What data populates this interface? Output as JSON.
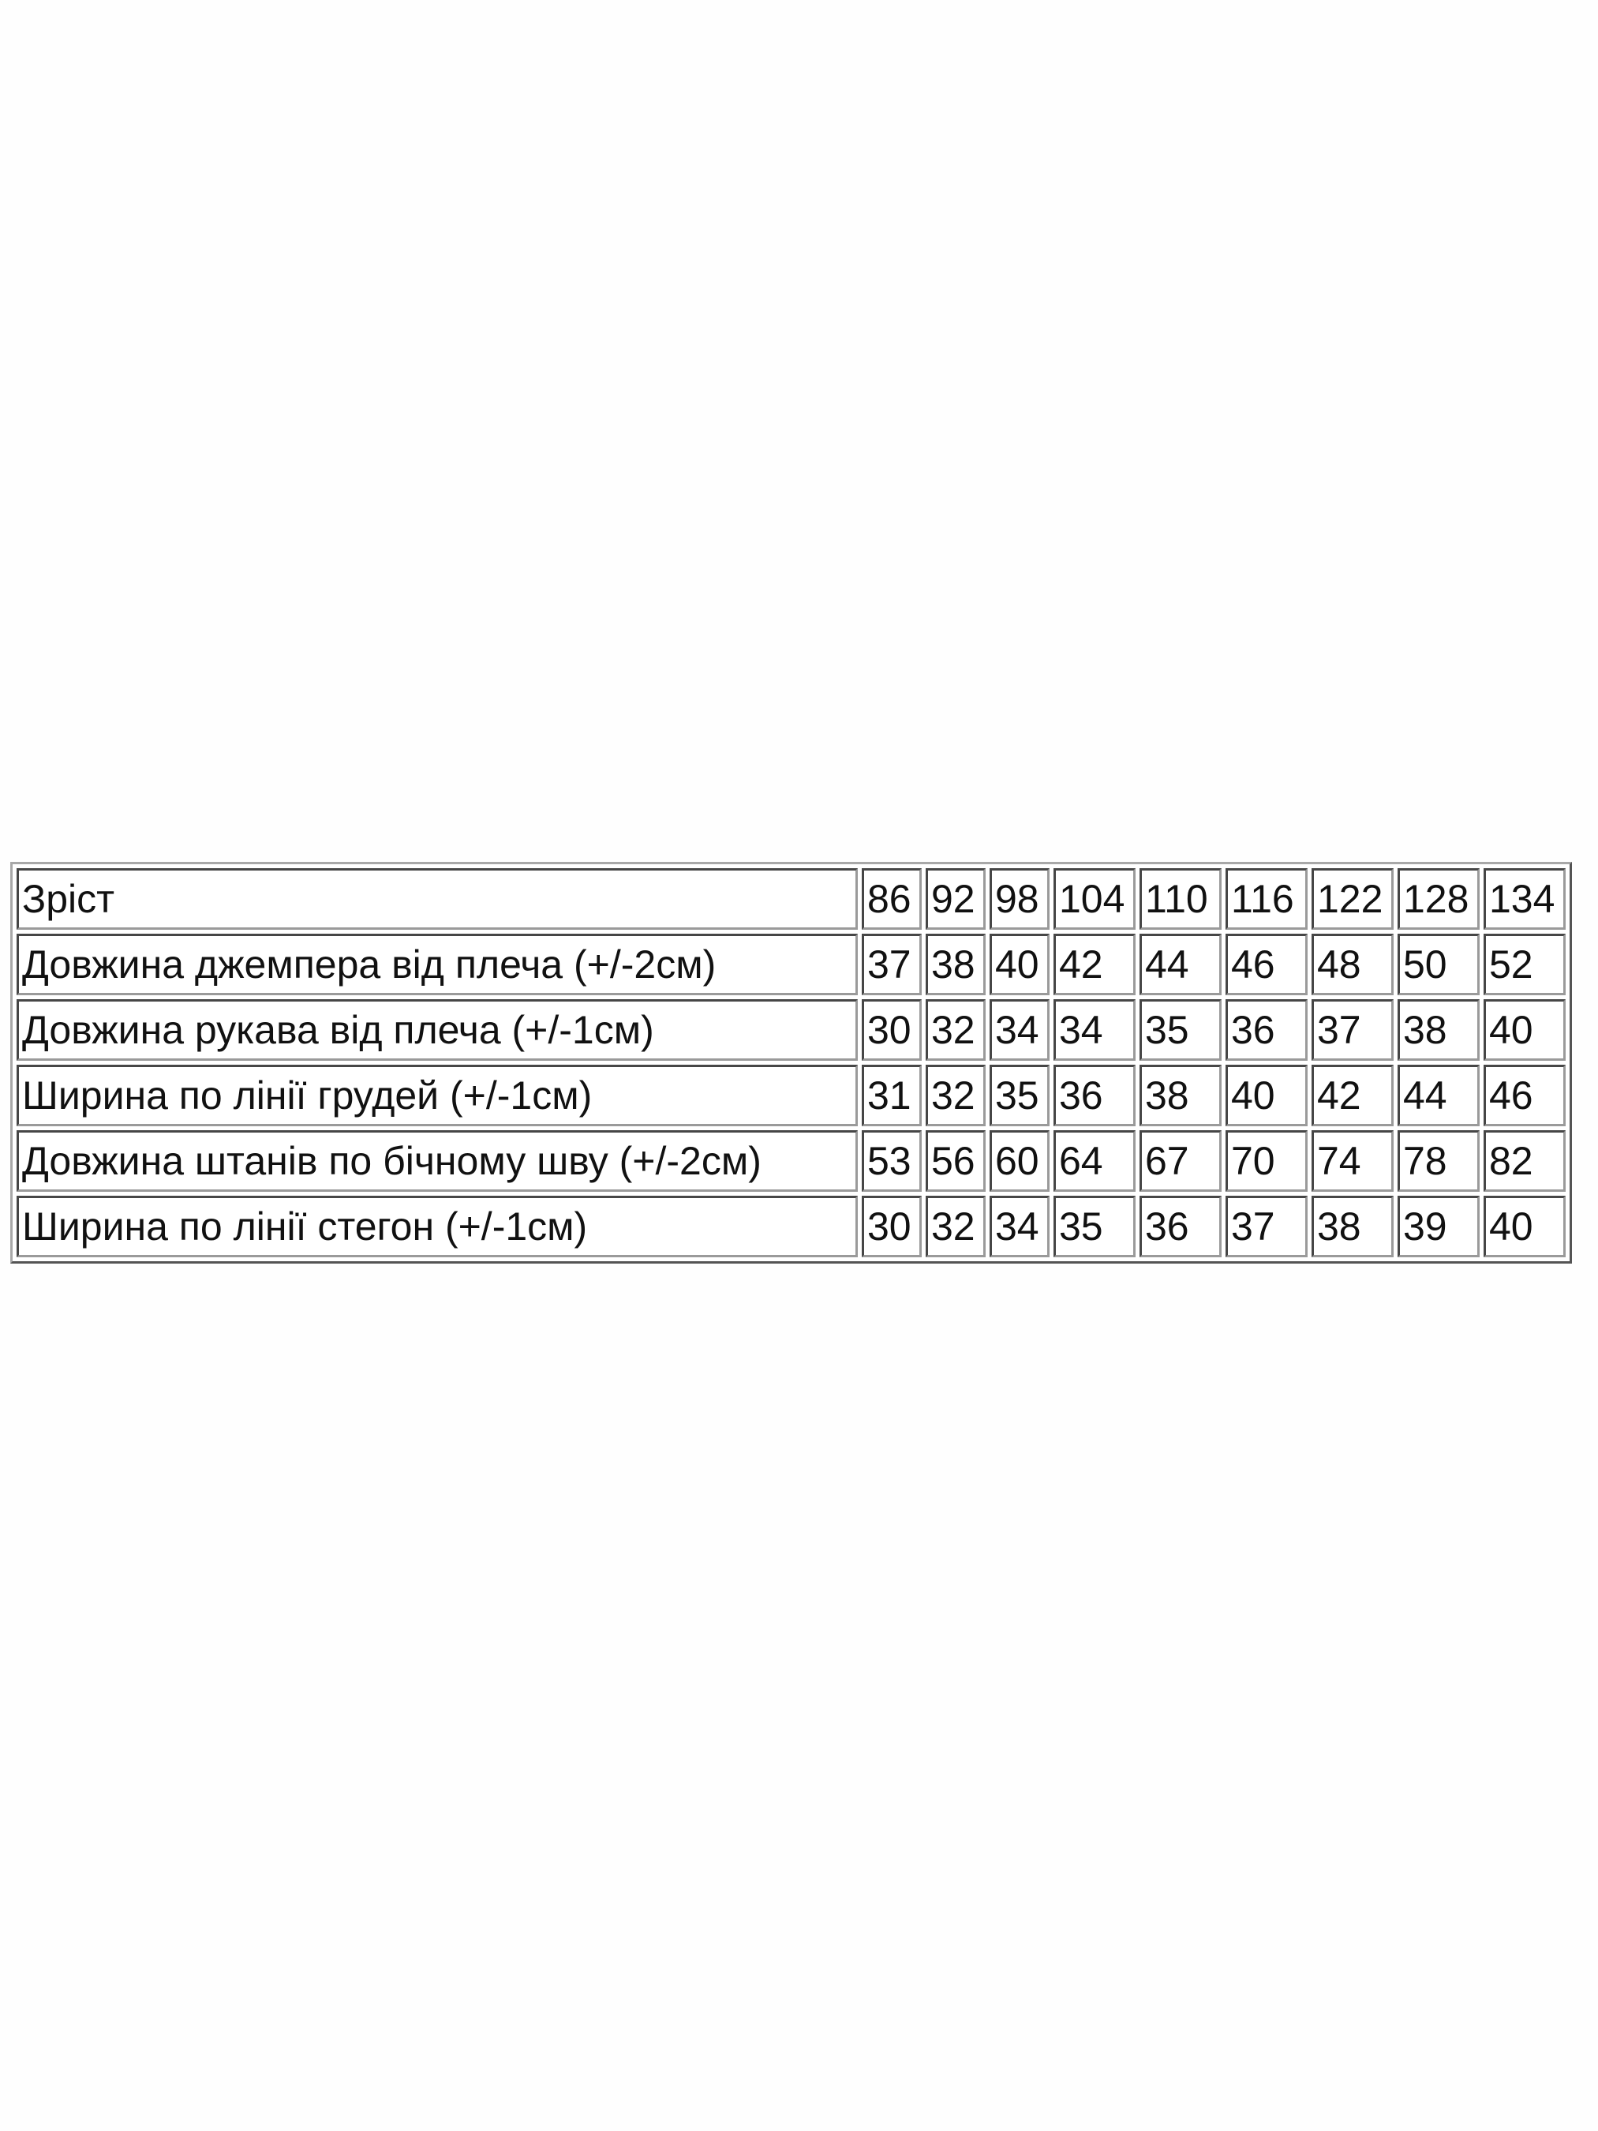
{
  "table": {
    "rows": [
      {
        "label": "Зріст",
        "values": [
          "86",
          "92",
          "98",
          "104",
          "110",
          "116",
          "122",
          "128",
          "134"
        ]
      },
      {
        "label": "Довжина джемпера від плеча (+/-2см)",
        "values": [
          "37",
          "38",
          "40",
          "42",
          "44",
          "46",
          "48",
          "50",
          "52"
        ]
      },
      {
        "label": "Довжина рукава від плеча (+/-1см)",
        "values": [
          "30",
          "32",
          "34",
          "34",
          "35",
          "36",
          "37",
          "38",
          "40"
        ]
      },
      {
        "label": "Ширина по лінії грудей (+/-1см)",
        "values": [
          "31",
          "32",
          "35",
          "36",
          "38",
          "40",
          "42",
          "44",
          "46"
        ]
      },
      {
        "label": "Довжина штанів по бічному шву (+/-2см)",
        "values": [
          "53",
          "56",
          "60",
          "64",
          "67",
          "70",
          "74",
          "78",
          "82"
        ]
      },
      {
        "label": "Ширина по лінії стегон (+/-1см)",
        "values": [
          "30",
          "32",
          "34",
          "35",
          "36",
          "37",
          "38",
          "39",
          "40"
        ]
      }
    ]
  }
}
